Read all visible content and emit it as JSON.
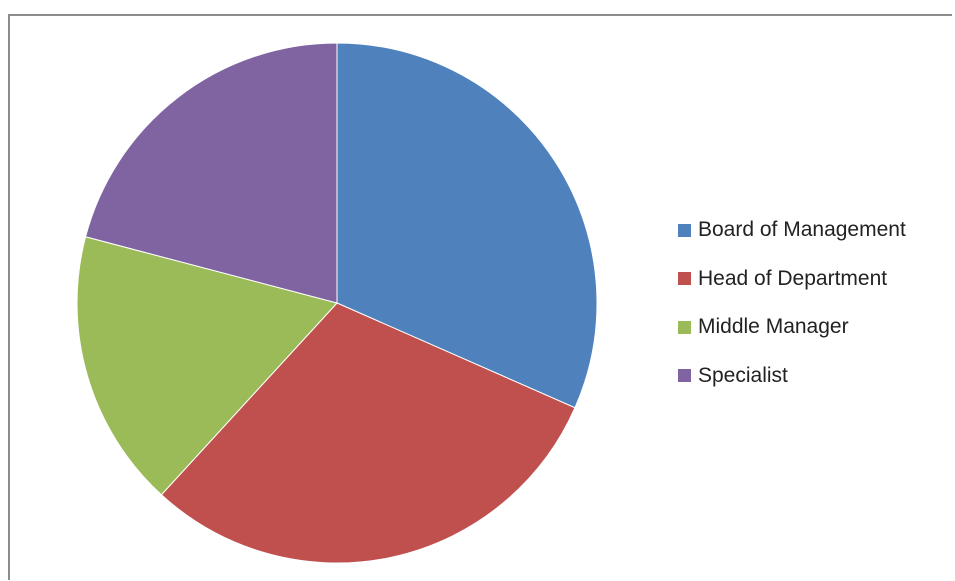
{
  "chart_data": {
    "type": "pie",
    "title": "",
    "legend_position": "right",
    "slices": [
      {
        "label": "Board of Management",
        "value": 31.6,
        "color": "#4f81bd"
      },
      {
        "label": "Head of Department",
        "value": 30.2,
        "color": "#c0504d"
      },
      {
        "label": "Middle Manager",
        "value": 17.3,
        "color": "#9bbb59"
      },
      {
        "label": "Specialist",
        "value": 20.9,
        "color": "#8064a2"
      }
    ]
  }
}
